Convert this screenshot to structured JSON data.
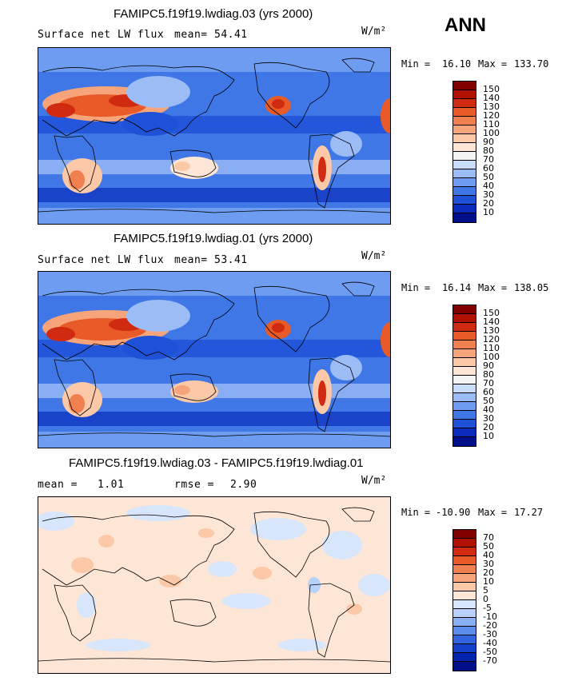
{
  "season": "ANN",
  "unit": "W/m²",
  "panels": [
    {
      "title": "FAMIPC5.f19f19.lwdiag.03 (yrs 2000)",
      "left_label": "Surface net LW flux",
      "stat_label": "mean=",
      "stat_value": "54.41",
      "min_label": "Min =",
      "min_value": "16.10",
      "max_label": "Max =",
      "max_value": "133.70"
    },
    {
      "title": "FAMIPC5.f19f19.lwdiag.01 (yrs 2000)",
      "left_label": "Surface net LW flux",
      "stat_label": "mean=",
      "stat_value": "53.41",
      "min_label": "Min =",
      "min_value": "16.14",
      "max_label": "Max =",
      "max_value": "138.05"
    },
    {
      "title": "FAMIPC5.f19f19.lwdiag.03 - FAMIPC5.f19f19.lwdiag.01",
      "left_label": "mean =",
      "left_value": "1.01",
      "stat_label": "rmse =",
      "stat_value": "2.90",
      "min_label": "Min =",
      "min_value": "-10.90",
      "max_label": "Max =",
      "max_value": "17.27"
    }
  ],
  "colorbar_abs": {
    "labels": [
      "150",
      "140",
      "130",
      "120",
      "110",
      "100",
      "90",
      "80",
      "70",
      "60",
      "50",
      "40",
      "30",
      "20",
      "10"
    ],
    "colors": [
      "#800000",
      "#b01000",
      "#d02a10",
      "#e85a28",
      "#f08050",
      "#f8a47a",
      "#fbc8a8",
      "#fde6d6",
      "#f4f4f4",
      "#c8dcfb",
      "#9cbcf6",
      "#6e9cf0",
      "#3f78e6",
      "#1e50d8",
      "#0a2cbc",
      "#000f8c"
    ]
  },
  "colorbar_diff": {
    "labels": [
      "70",
      "50",
      "40",
      "30",
      "20",
      "10",
      "5",
      "0",
      "-5",
      "-10",
      "-20",
      "-30",
      "-40",
      "-50",
      "-70"
    ],
    "colors": [
      "#800000",
      "#b01000",
      "#d02a10",
      "#e85a28",
      "#f08050",
      "#f8a47a",
      "#fbc8a8",
      "#fde6d6",
      "#d8e6fb",
      "#b8d0fa",
      "#8ab0f4",
      "#5c8cec",
      "#3064e0",
      "#1440cc",
      "#0424b0",
      "#00108a"
    ]
  }
}
